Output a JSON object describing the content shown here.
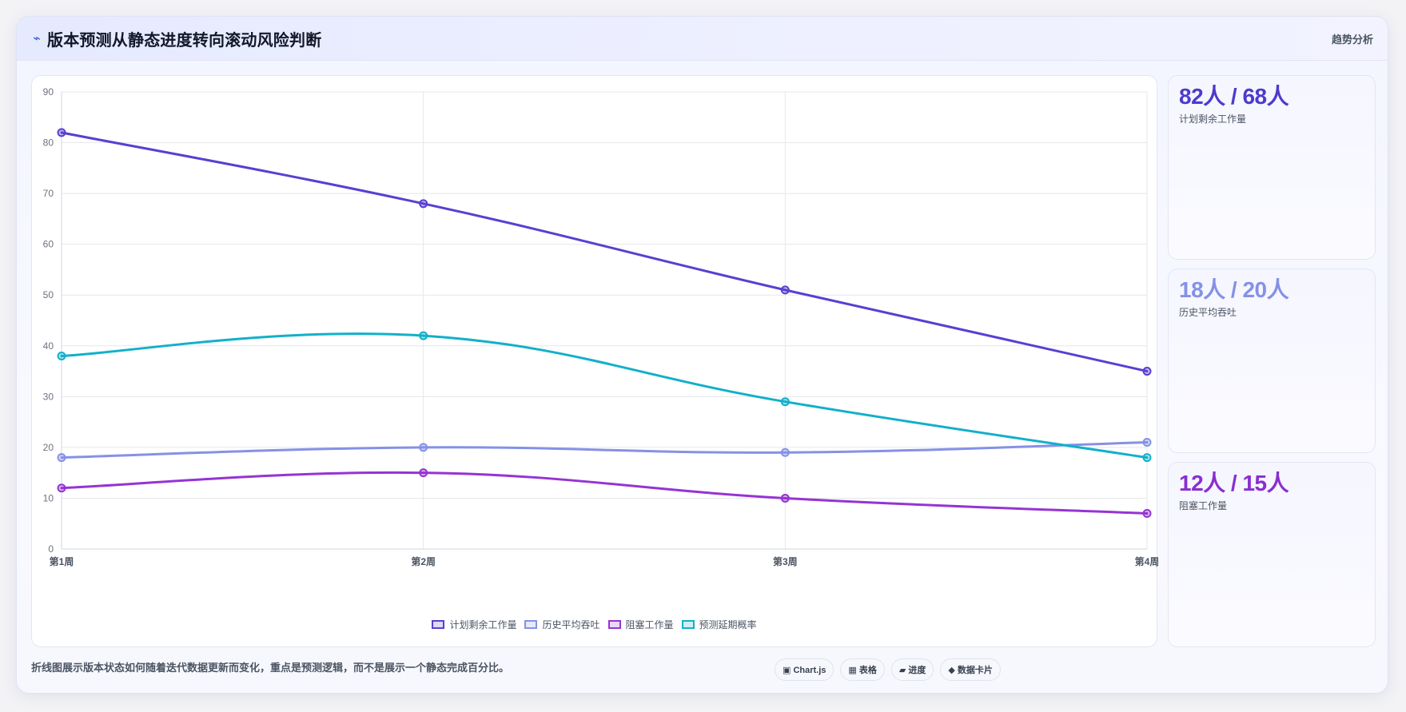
{
  "header": {
    "icon": "lightning-icon",
    "title": "版本预测从静态进度转向滚动风险判断",
    "tag": "趋势分析"
  },
  "chart_data": {
    "type": "line",
    "categories": [
      "第1周",
      "第2周",
      "第3周",
      "第4周"
    ],
    "ylim": [
      0,
      90
    ],
    "yticks": [
      0,
      10,
      20,
      30,
      40,
      50,
      60,
      70,
      80,
      90
    ],
    "grid": true,
    "legend_position": "bottom",
    "series": [
      {
        "name": "计划剩余工作量",
        "color": "#5a3fd1",
        "values": [
          82,
          68,
          51,
          35
        ]
      },
      {
        "name": "历史平均吞吐",
        "color": "#8591e6",
        "values": [
          18,
          20,
          19,
          21
        ]
      },
      {
        "name": "阻塞工作量",
        "color": "#9534d3",
        "values": [
          12,
          15,
          10,
          7
        ]
      },
      {
        "name": "预测延期概率",
        "color": "#12b0c9",
        "values": [
          38,
          42,
          29,
          18
        ]
      }
    ]
  },
  "side_cards": [
    {
      "value": "82人 / 68人",
      "label": "计划剩余工作量",
      "color": "#4d3bcc"
    },
    {
      "value": "18人 / 20人",
      "label": "历史平均吞吐",
      "color": "#8591e6"
    },
    {
      "value": "12人 / 15人",
      "label": "阻塞工作量",
      "color": "#8a2ed0"
    }
  ],
  "footer": {
    "note": "折线图展示版本状态如何随着迭代数据更新而变化，重点是预测逻辑，而不是展示一个静态完成百分比。",
    "chips": [
      {
        "icon": "chart-icon",
        "label": "▣ Chart.js"
      },
      {
        "icon": "table-icon",
        "label": "▦ 表格"
      },
      {
        "icon": "progress-icon",
        "label": "▰ 进度"
      },
      {
        "icon": "datacard-icon",
        "label": "◆ 数据卡片"
      }
    ]
  }
}
